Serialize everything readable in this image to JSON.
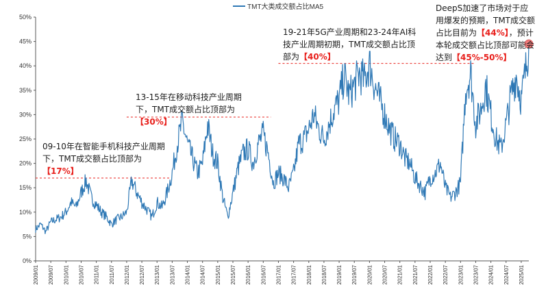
{
  "chart_data": {
    "type": "line",
    "title": "",
    "xlabel": "",
    "ylabel": "",
    "legend": {
      "position": "top-center",
      "label": "TMT大类成交额占比MA5"
    },
    "x_range": [
      "2009/01",
      "2025/04"
    ],
    "x_ticks": [
      "2009/01",
      "2009/07",
      "2010/01",
      "2010/07",
      "2011/01",
      "2011/07",
      "2012/01",
      "2012/07",
      "2013/01",
      "2013/07",
      "2014/01",
      "2014/07",
      "2015/01",
      "2015/07",
      "2016/01",
      "2016/07",
      "2017/01",
      "2017/07",
      "2018/01",
      "2018/07",
      "2019/01",
      "2019/07",
      "2020/01",
      "2020/07",
      "2021/01",
      "2021/07",
      "2022/01",
      "2022/07",
      "2023/01",
      "2023/07",
      "2024/01",
      "2024/07",
      "2025/01"
    ],
    "ylim": [
      0,
      50
    ],
    "y_ticks": [
      "0%",
      "5%",
      "10%",
      "15%",
      "20%",
      "25%",
      "30%",
      "35%",
      "40%",
      "45%",
      "50%"
    ],
    "grid": false,
    "colors": {
      "series": "#2e78b5",
      "reference_line": "#e8201c",
      "marker": "#ee7b7b"
    },
    "series": [
      {
        "name": "TMT大类成交额占比MA5",
        "points": [
          [
            "2009/01",
            6.5
          ],
          [
            "2009/03",
            7.5
          ],
          [
            "2009/05",
            6.0
          ],
          [
            "2009/07",
            8.0
          ],
          [
            "2009/09",
            8.5
          ],
          [
            "2009/11",
            9.0
          ],
          [
            "2010/01",
            10.0
          ],
          [
            "2010/03",
            12.0
          ],
          [
            "2010/05",
            11.0
          ],
          [
            "2010/07",
            14.0
          ],
          [
            "2010/09",
            16.5
          ],
          [
            "2010/11",
            13.0
          ],
          [
            "2011/01",
            11.5
          ],
          [
            "2011/03",
            10.0
          ],
          [
            "2011/05",
            9.0
          ],
          [
            "2011/07",
            7.5
          ],
          [
            "2011/09",
            8.5
          ],
          [
            "2011/11",
            9.0
          ],
          [
            "2012/01",
            10.0
          ],
          [
            "2012/03",
            16.5
          ],
          [
            "2012/05",
            14.0
          ],
          [
            "2012/07",
            12.0
          ],
          [
            "2012/09",
            10.5
          ],
          [
            "2012/11",
            9.0
          ],
          [
            "2013/01",
            12.0
          ],
          [
            "2013/03",
            11.0
          ],
          [
            "2013/05",
            14.0
          ],
          [
            "2013/07",
            18.0
          ],
          [
            "2013/09",
            24.0
          ],
          [
            "2013/11",
            28.5
          ],
          [
            "2014/01",
            24.0
          ],
          [
            "2014/03",
            21.0
          ],
          [
            "2014/05",
            18.0
          ],
          [
            "2014/07",
            20.0
          ],
          [
            "2014/09",
            28.0
          ],
          [
            "2014/11",
            22.0
          ],
          [
            "2015/01",
            20.0
          ],
          [
            "2015/03",
            13.0
          ],
          [
            "2015/05",
            9.0
          ],
          [
            "2015/07",
            14.0
          ],
          [
            "2015/09",
            19.0
          ],
          [
            "2015/11",
            22.0
          ],
          [
            "2016/01",
            23.0
          ],
          [
            "2016/03",
            20.0
          ],
          [
            "2016/05",
            24.0
          ],
          [
            "2016/07",
            26.0
          ],
          [
            "2016/09",
            22.0
          ],
          [
            "2016/11",
            16.0
          ],
          [
            "2017/01",
            18.0
          ],
          [
            "2017/03",
            17.0
          ],
          [
            "2017/05",
            15.0
          ],
          [
            "2017/07",
            18.0
          ],
          [
            "2017/09",
            24.0
          ],
          [
            "2017/11",
            25.0
          ],
          [
            "2018/01",
            27.0
          ],
          [
            "2018/03",
            30.0
          ],
          [
            "2018/05",
            27.0
          ],
          [
            "2018/07",
            25.0
          ],
          [
            "2018/09",
            28.0
          ],
          [
            "2018/11",
            31.0
          ],
          [
            "2019/01",
            33.0
          ],
          [
            "2019/03",
            38.0
          ],
          [
            "2019/05",
            34.0
          ],
          [
            "2019/07",
            36.0
          ],
          [
            "2019/09",
            38.5
          ],
          [
            "2019/11",
            37.0
          ],
          [
            "2020/01",
            40.5
          ],
          [
            "2020/03",
            36.0
          ],
          [
            "2020/05",
            33.0
          ],
          [
            "2020/07",
            30.0
          ],
          [
            "2020/09",
            27.0
          ],
          [
            "2020/11",
            25.0
          ],
          [
            "2021/01",
            24.0
          ],
          [
            "2021/03",
            21.0
          ],
          [
            "2021/05",
            20.0
          ],
          [
            "2021/07",
            17.0
          ],
          [
            "2021/09",
            15.5
          ],
          [
            "2021/11",
            14.0
          ],
          [
            "2022/01",
            17.0
          ],
          [
            "2022/03",
            18.0
          ],
          [
            "2022/05",
            20.0
          ],
          [
            "2022/07",
            15.0
          ],
          [
            "2022/09",
            13.0
          ],
          [
            "2022/11",
            14.0
          ],
          [
            "2023/01",
            16.0
          ],
          [
            "2023/03",
            35.0
          ],
          [
            "2023/05",
            38.5
          ],
          [
            "2023/07",
            28.0
          ],
          [
            "2023/09",
            31.0
          ],
          [
            "2023/11",
            36.0
          ],
          [
            "2024/01",
            30.0
          ],
          [
            "2024/03",
            25.0
          ],
          [
            "2024/05",
            23.0
          ],
          [
            "2024/07",
            28.0
          ],
          [
            "2024/09",
            34.0
          ],
          [
            "2024/11",
            38.0
          ],
          [
            "2025/01",
            33.0
          ],
          [
            "2025/03",
            40.0
          ],
          [
            "2025/04",
            44.5
          ]
        ]
      }
    ],
    "reference_lines": [
      {
        "y": 17,
        "x_start": "2009/01",
        "x_end": "2013/06"
      },
      {
        "y": 29.5,
        "x_start": "2012/01",
        "x_end": "2016/10"
      },
      {
        "y": 40.5,
        "x_start": "2017/01",
        "x_end": "2023/07"
      }
    ],
    "annotations": [
      {
        "before": "09-10年在智能手机科技产业周期下，TMT成交额占比顶部为",
        "highlight": "【17%】",
        "after": ""
      },
      {
        "before": "13-15年在移动科技产业周期下，TMT成交额占比顶部为",
        "highlight": "【30%】",
        "after": ""
      },
      {
        "before": "19-21年5G产业周期和23-24年AI科技产业周期初期，TMT成交额占比顶部为",
        "highlight": "【40%】",
        "after": ""
      },
      {
        "before": "DeepS加速了市场对于应用爆发的预期，TMT成交额占比目前为",
        "highlight": "【44%】",
        "after": "，预计本轮成交额占比顶部可能会达到",
        "highlight2": "【45%-50%】"
      }
    ],
    "current_point": {
      "x": "2025/04",
      "y": 44.5
    }
  }
}
